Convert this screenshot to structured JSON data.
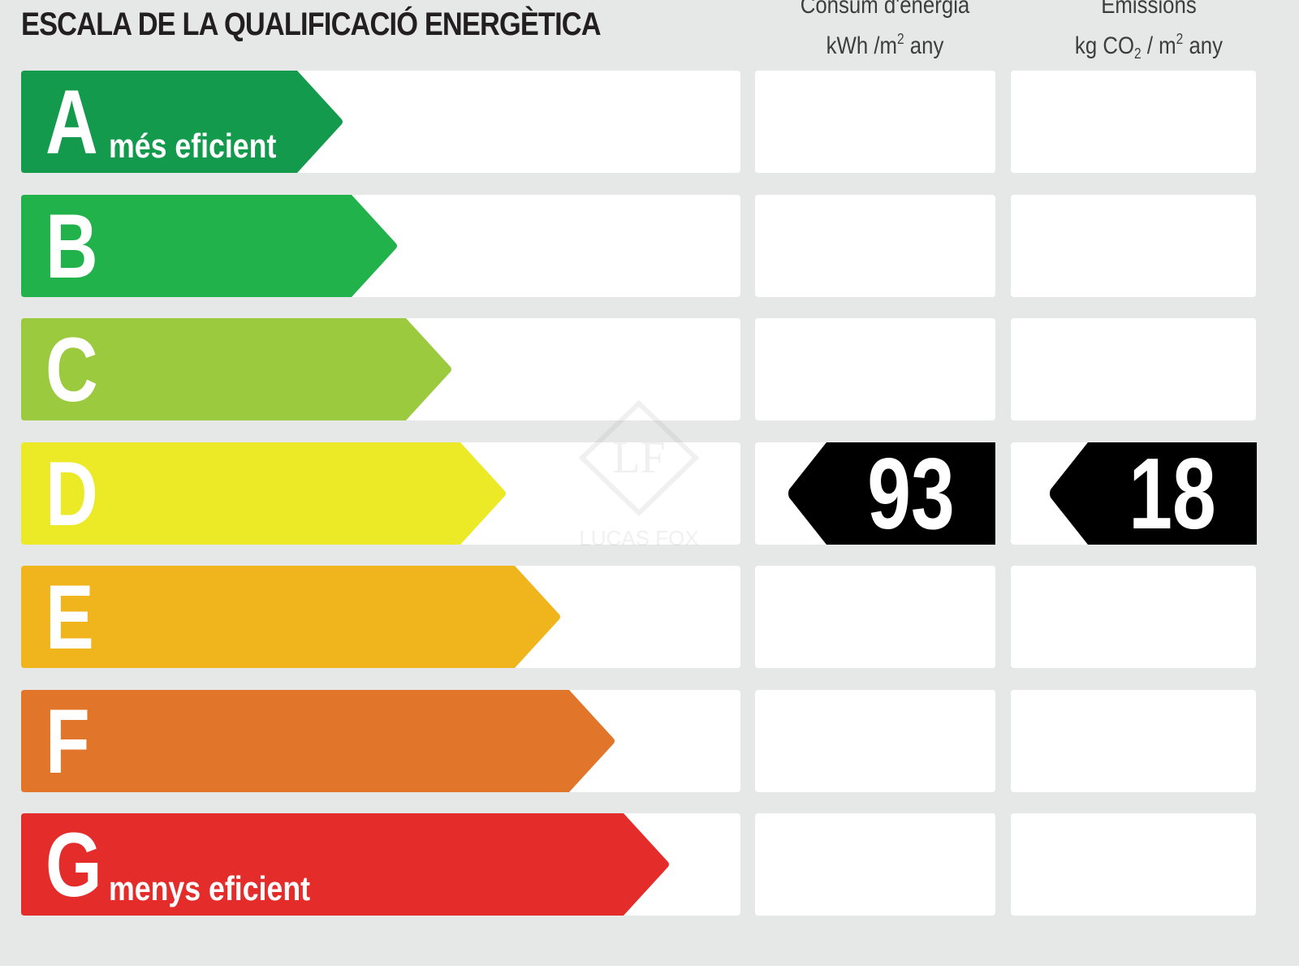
{
  "title": "ESCALA DE LA QUALIFICACIÓ ENERGÈTICA",
  "columns": {
    "consum": {
      "line1": "Consum d'energia",
      "unit_main": "kWh /m",
      "unit_sup": "2",
      "unit_tail": " any"
    },
    "emissions": {
      "line1": "Emissions",
      "unit_a": "kg CO",
      "unit_sub": "2",
      "unit_b": " / m",
      "unit_sup": "2",
      "unit_tail": " any"
    }
  },
  "bands": [
    {
      "letter": "A",
      "label": "més eficient",
      "color": "#139a4c"
    },
    {
      "letter": "B",
      "label": "",
      "color": "#21b24b"
    },
    {
      "letter": "C",
      "label": "",
      "color": "#9bca3e"
    },
    {
      "letter": "D",
      "label": "",
      "color": "#ece927"
    },
    {
      "letter": "E",
      "label": "",
      "color": "#f0b41d"
    },
    {
      "letter": "F",
      "label": "",
      "color": "#e1762b"
    },
    {
      "letter": "G",
      "label": "menys eficient",
      "color": "#e42d2b"
    }
  ],
  "rating": {
    "band": "D",
    "consumption": "93",
    "emissions": "18",
    "tag_color": "#000000"
  },
  "watermark": {
    "brand": "LUCAS FOX",
    "monogram": "LF"
  }
}
